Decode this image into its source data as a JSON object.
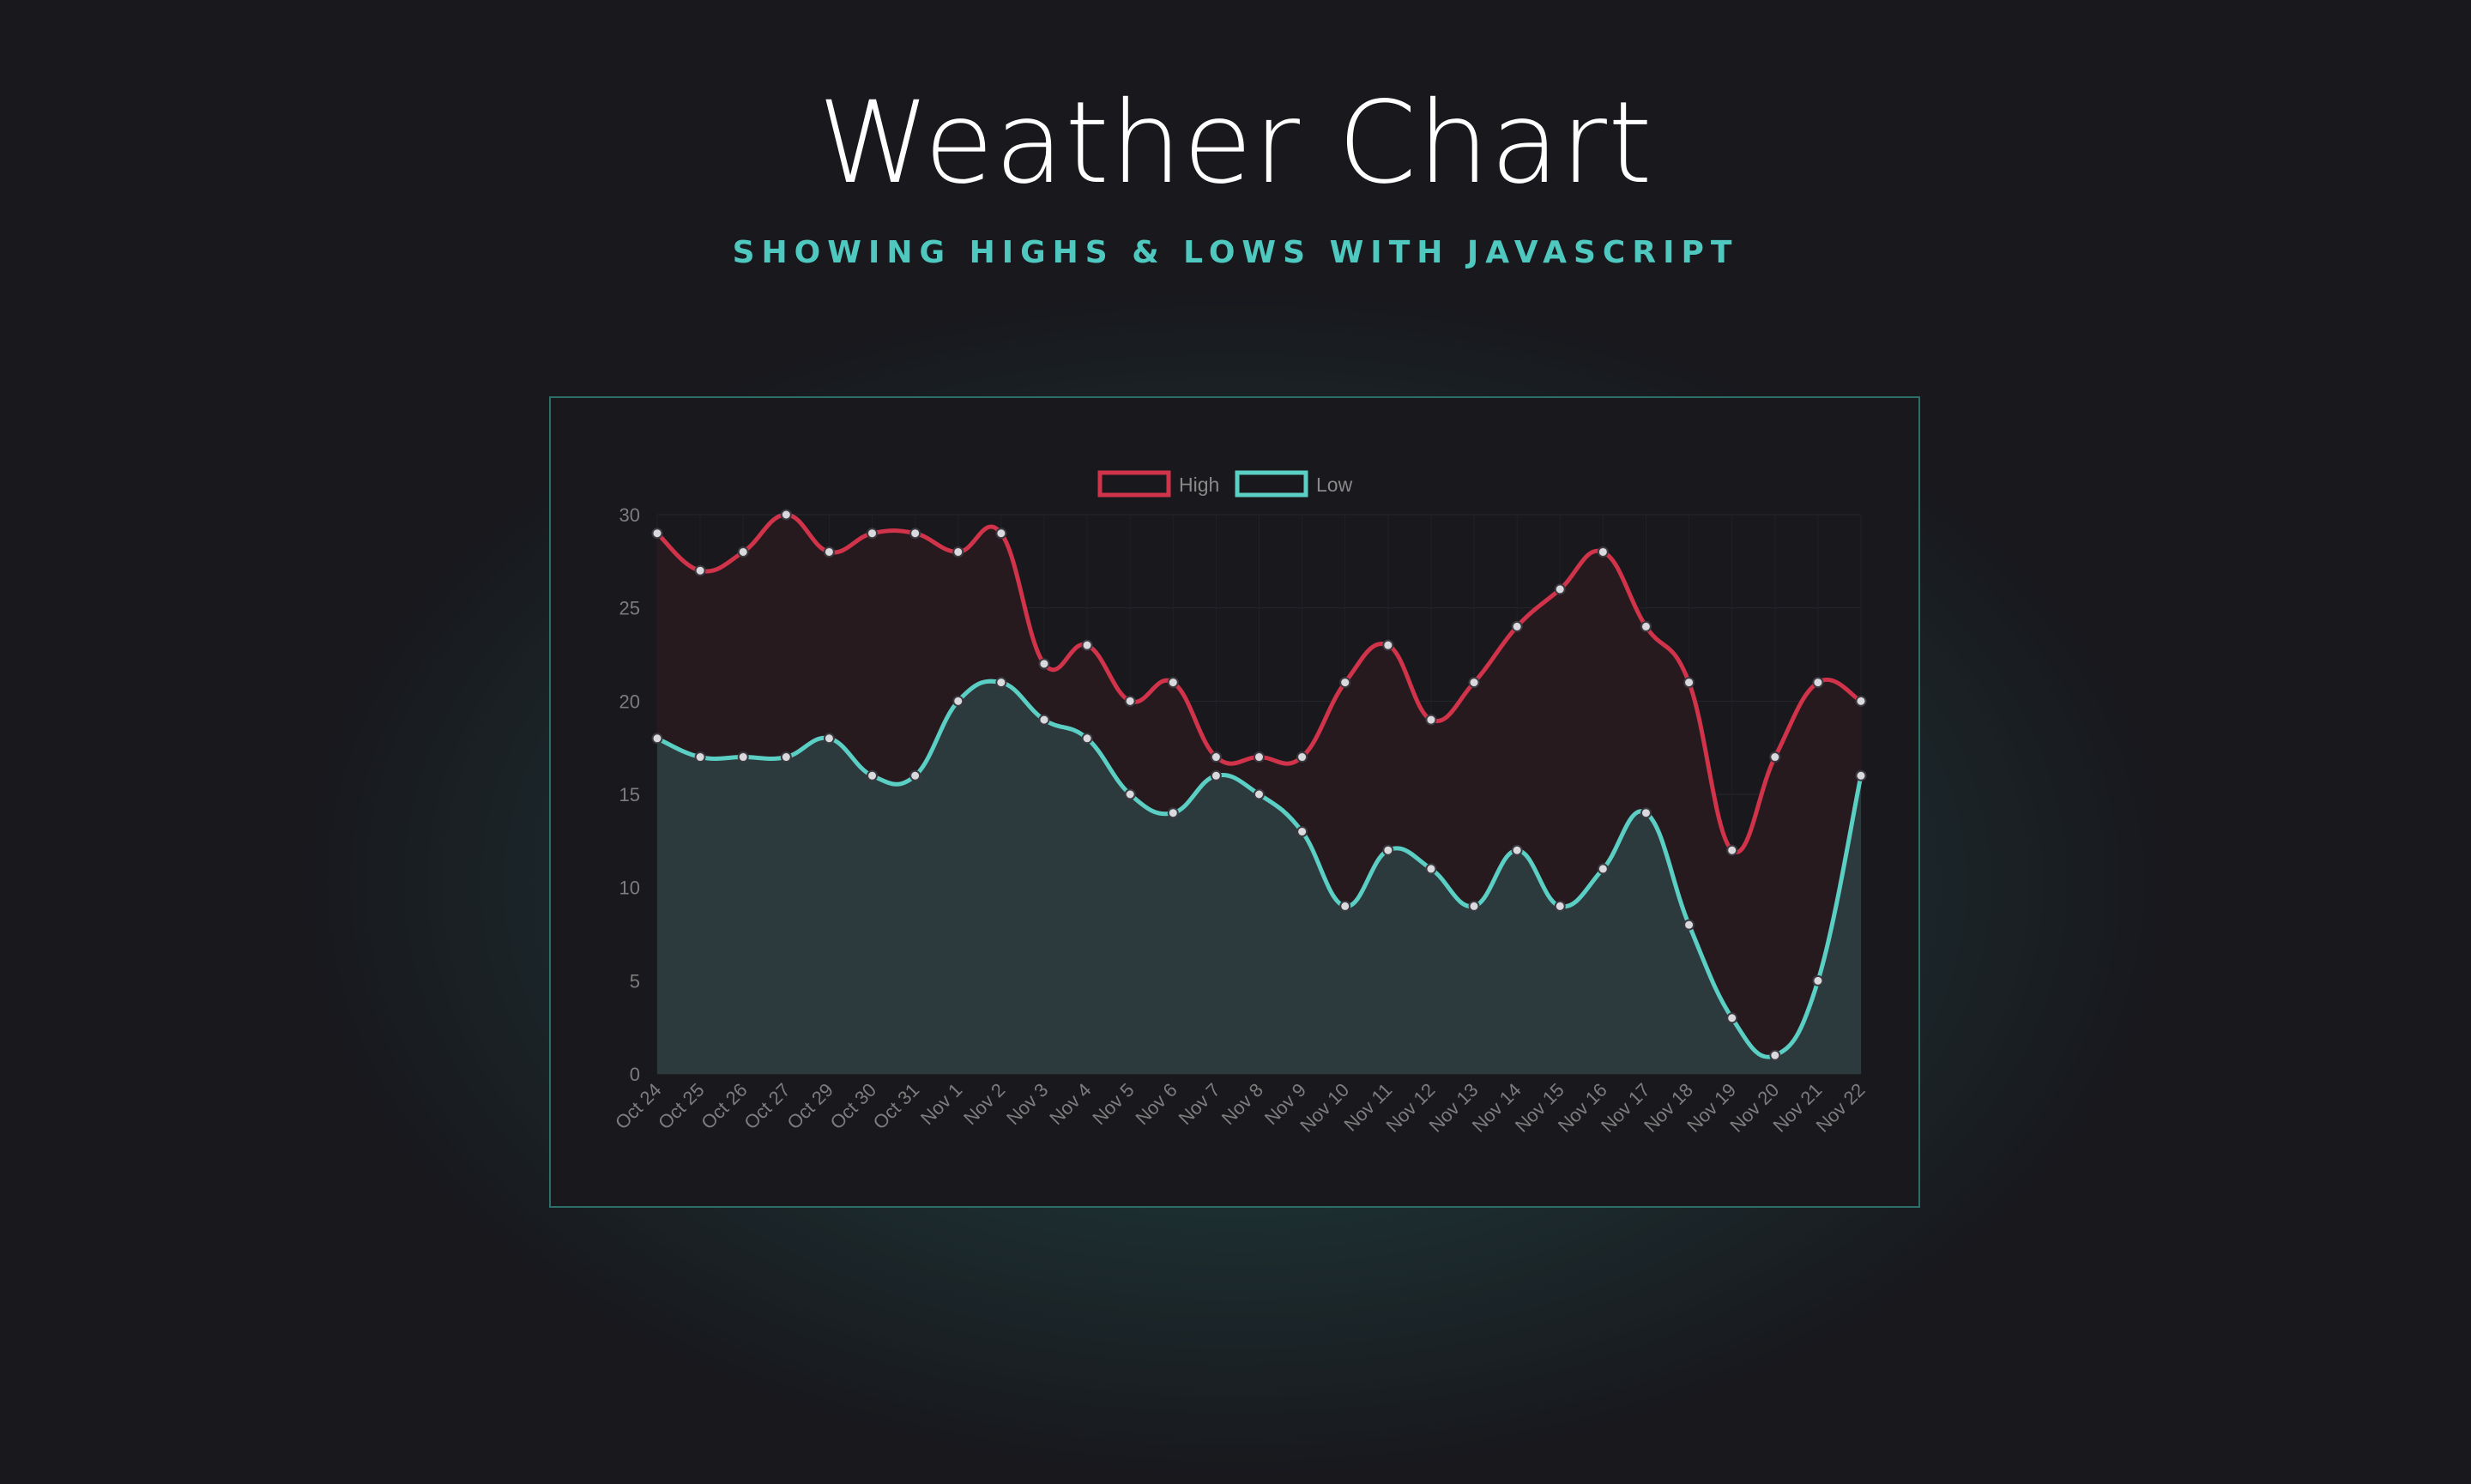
{
  "page": {
    "title": "Weather Chart",
    "subtitle": "SHOWING HIGHS & LOWS WITH JAVASCRIPT"
  },
  "colors": {
    "background": "#18181d",
    "accent": "#4fc8c0",
    "high": "#d0334a",
    "low": "#5ccfc5",
    "high_fill": "#261a1f",
    "low_fill": "#2c3a3d"
  },
  "chart_data": {
    "type": "line",
    "title": "",
    "xlabel": "",
    "ylabel": "",
    "ylim": [
      0,
      30
    ],
    "y_ticks": [
      0,
      5,
      10,
      15,
      20,
      25,
      30
    ],
    "grid": true,
    "legend": "top-center",
    "categories": [
      "Oct 24",
      "Oct 25",
      "Oct 26",
      "Oct 27",
      "Oct 29",
      "Oct 30",
      "Oct 31",
      "Nov 1",
      "Nov 2",
      "Nov 3",
      "Nov 4",
      "Nov 5",
      "Nov 6",
      "Nov 7",
      "Nov 8",
      "Nov 9",
      "Nov 10",
      "Nov 11",
      "Nov 12",
      "Nov 13",
      "Nov 14",
      "Nov 15",
      "Nov 16",
      "Nov 17",
      "Nov 18",
      "Nov 19",
      "Nov 20",
      "Nov 21",
      "Nov 22"
    ],
    "series": [
      {
        "name": "High",
        "color": "#d0334a",
        "values": [
          29,
          27,
          28,
          30,
          28,
          29,
          29,
          28,
          29,
          22,
          23,
          20,
          21,
          17,
          17,
          17,
          21,
          23,
          19,
          21,
          24,
          26,
          28,
          24,
          21,
          12,
          17,
          21,
          20
        ]
      },
      {
        "name": "Low",
        "color": "#5ccfc5",
        "values": [
          18,
          17,
          17,
          17,
          18,
          16,
          16,
          20,
          21,
          19,
          18,
          15,
          14,
          16,
          15,
          13,
          9,
          12,
          11,
          9,
          12,
          9,
          11,
          14,
          8,
          3,
          1,
          5,
          16
        ]
      }
    ]
  }
}
